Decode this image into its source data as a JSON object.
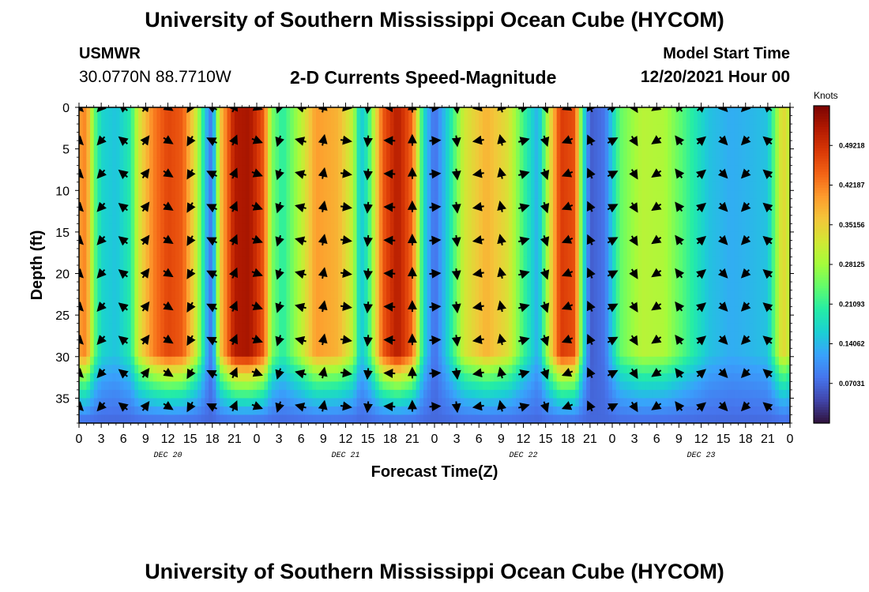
{
  "page": {
    "title": "University of Southern Mississippi Ocean Cube (HYCOM)",
    "station_name": "USMWR",
    "station_coords": "30.0770N  88.7710W",
    "plot_title": "2-D Currents Speed-Magnitude",
    "model_start_label": "Model Start Time",
    "model_start_value": "12/20/2021 Hour 00",
    "footer_title": "University of Southern Mississippi Ocean Cube (HYCOM)"
  },
  "colors": {
    "colormap": [
      "#30123b",
      "#4145ab",
      "#4675ed",
      "#39a2fc",
      "#1bcfd4",
      "#24eca6",
      "#61fc6c",
      "#a4fc3b",
      "#d1e834",
      "#f3c63a",
      "#fe9b2d",
      "#f36315",
      "#d93806",
      "#b11901",
      "#7a0402"
    ],
    "arrow": "#000000"
  },
  "chart_data": {
    "type": "heatmap",
    "title": "2-D Currents Speed-Magnitude",
    "xlabel": "Forecast Time(Z)",
    "ylabel": "Depth (ft)",
    "x_range_hours": [
      0,
      96
    ],
    "y_range_ft": [
      0,
      38
    ],
    "y_ticks": [
      0,
      5,
      10,
      15,
      20,
      25,
      30,
      35
    ],
    "x_tick_labels": [
      "0",
      "3",
      "6",
      "9",
      "12",
      "15",
      "18",
      "21",
      "0",
      "3",
      "6",
      "9",
      "12",
      "15",
      "18",
      "21",
      "0",
      "3",
      "6",
      "9",
      "12",
      "15",
      "18",
      "21",
      "0",
      "3",
      "6",
      "9",
      "12",
      "15",
      "18",
      "21",
      "0"
    ],
    "day_labels": [
      "DEC 20",
      "DEC 21",
      "DEC 22",
      "DEC 23"
    ],
    "colorbar": {
      "label": "Knots",
      "range": [
        0,
        0.5625
      ],
      "ticks": [
        0.07031,
        0.14062,
        0.21093,
        0.28125,
        0.35156,
        0.42187,
        0.49218
      ],
      "tick_labels": [
        "0.07031",
        "0.14062",
        "0.21093",
        "0.28125",
        "0.35156",
        "0.42187",
        "0.49218"
      ]
    },
    "surface_speed_profile_knots": [
      {
        "hour": 0,
        "speed": 0.4
      },
      {
        "hour": 1,
        "speed": 0.42
      },
      {
        "hour": 2,
        "speed": 0.25
      },
      {
        "hour": 3,
        "speed": 0.17
      },
      {
        "hour": 5,
        "speed": 0.15
      },
      {
        "hour": 7,
        "speed": 0.2
      },
      {
        "hour": 8,
        "speed": 0.32
      },
      {
        "hour": 10,
        "speed": 0.42
      },
      {
        "hour": 12,
        "speed": 0.47
      },
      {
        "hour": 14,
        "speed": 0.45
      },
      {
        "hour": 16,
        "speed": 0.3
      },
      {
        "hour": 17.5,
        "speed": 0.1
      },
      {
        "hour": 18,
        "speed": 0.08
      },
      {
        "hour": 19,
        "speed": 0.35
      },
      {
        "hour": 21,
        "speed": 0.52
      },
      {
        "hour": 23,
        "speed": 0.53
      },
      {
        "hour": 25,
        "speed": 0.45
      },
      {
        "hour": 26,
        "speed": 0.26
      },
      {
        "hour": 27.5,
        "speed": 0.2
      },
      {
        "hour": 30,
        "speed": 0.3
      },
      {
        "hour": 32,
        "speed": 0.4
      },
      {
        "hour": 35,
        "speed": 0.38
      },
      {
        "hour": 37,
        "speed": 0.3
      },
      {
        "hour": 38,
        "speed": 0.15
      },
      {
        "hour": 39,
        "speed": 0.2
      },
      {
        "hour": 41,
        "speed": 0.45
      },
      {
        "hour": 43,
        "speed": 0.52
      },
      {
        "hour": 45,
        "speed": 0.44
      },
      {
        "hour": 46.5,
        "speed": 0.18
      },
      {
        "hour": 48,
        "speed": 0.07
      },
      {
        "hour": 50,
        "speed": 0.18
      },
      {
        "hour": 52,
        "speed": 0.32
      },
      {
        "hour": 55,
        "speed": 0.38
      },
      {
        "hour": 58,
        "speed": 0.33
      },
      {
        "hour": 60,
        "speed": 0.22
      },
      {
        "hour": 62,
        "speed": 0.13
      },
      {
        "hour": 63.5,
        "speed": 0.32
      },
      {
        "hour": 65,
        "speed": 0.48
      },
      {
        "hour": 67,
        "speed": 0.46
      },
      {
        "hour": 68,
        "speed": 0.2
      },
      {
        "hour": 69,
        "speed": 0.06
      },
      {
        "hour": 71,
        "speed": 0.08
      },
      {
        "hour": 73,
        "speed": 0.24
      },
      {
        "hour": 76,
        "speed": 0.3
      },
      {
        "hour": 79,
        "speed": 0.29
      },
      {
        "hour": 82,
        "speed": 0.22
      },
      {
        "hour": 85,
        "speed": 0.15
      },
      {
        "hour": 88,
        "speed": 0.13
      },
      {
        "hour": 91,
        "speed": 0.14
      },
      {
        "hour": 93,
        "speed": 0.15
      },
      {
        "hour": 94,
        "speed": 0.25
      },
      {
        "hour": 95,
        "speed": 0.35
      },
      {
        "hour": 96,
        "speed": 0.3
      }
    ],
    "near_bottom_speed_knots": 0.07,
    "vector_grid": {
      "hours": [
        0,
        3,
        6,
        9,
        12,
        15,
        18,
        21,
        24,
        27,
        30,
        33,
        36,
        39,
        42,
        45,
        48,
        51,
        54,
        57,
        60,
        63,
        66,
        69,
        72,
        75,
        78,
        81,
        84,
        87,
        90,
        93
      ],
      "depths_ft": [
        0,
        4,
        8,
        12,
        16,
        20,
        24,
        28,
        32,
        36
      ]
    }
  }
}
